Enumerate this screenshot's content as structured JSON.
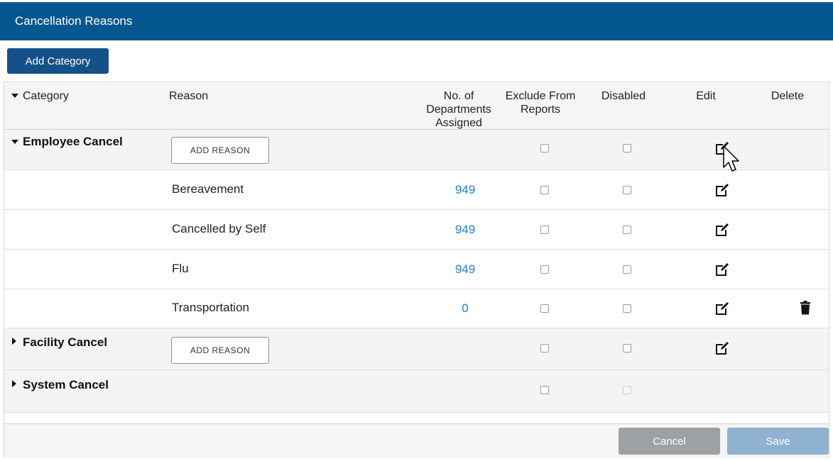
{
  "window": {
    "title": "Cancellation Reasons"
  },
  "toolbar": {
    "add_category_label": "Add Category"
  },
  "table": {
    "headers": {
      "category": "Category",
      "reason": "Reason",
      "departments_line1": "No. of",
      "departments_line2": "Departments",
      "departments_line3": "Assigned",
      "exclude_line1": "Exclude From",
      "exclude_line2": "Reports",
      "disabled": "Disabled",
      "edit": "Edit",
      "delete": "Delete"
    },
    "add_reason_label": "ADD REASON",
    "categories": [
      {
        "name": "Employee Cancel",
        "expanded": true
      },
      {
        "name": "Facility Cancel",
        "expanded": false
      },
      {
        "name": "System Cancel",
        "expanded": false
      }
    ],
    "reasons": [
      {
        "name": "Bereavement",
        "count": "949"
      },
      {
        "name": "Cancelled by Self",
        "count": "949"
      },
      {
        "name": "Flu",
        "count": "949"
      },
      {
        "name": "Transportation",
        "count": "0"
      }
    ]
  },
  "footer": {
    "cancel_label": "Cancel",
    "save_label": "Save"
  },
  "icons": {
    "edit": "edit-icon",
    "delete": "trash-icon",
    "caret_down": "caret-down-icon",
    "caret_right": "caret-right-icon"
  },
  "colors": {
    "header_bar": "#04578f",
    "primary_button": "#155188",
    "link": "#1e7fd8"
  }
}
